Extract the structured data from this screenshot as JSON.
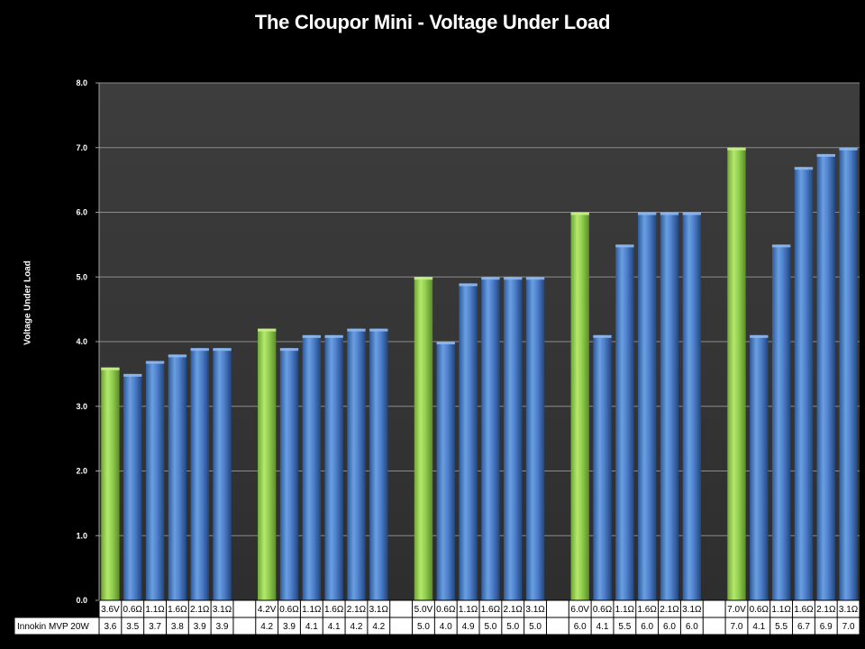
{
  "chart_data": {
    "type": "bar",
    "title": "The Cloupor Mini - Voltage Under Load",
    "ylabel": "Voltage Under Load",
    "xlabel": "",
    "ylim": [
      0,
      8
    ],
    "yticks": [
      "0.0",
      "1.0",
      "2.0",
      "3.0",
      "4.0",
      "5.0",
      "6.0",
      "7.0",
      "8.0"
    ],
    "grid": true,
    "categories": [
      "3.6V",
      "0.6Ω",
      "1.1Ω",
      "1.6Ω",
      "2.1Ω",
      "3.1Ω",
      "",
      "4.2V",
      "0.6Ω",
      "1.1Ω",
      "1.6Ω",
      "2.1Ω",
      "3.1Ω",
      "",
      "5.0V",
      "0.6Ω",
      "1.1Ω",
      "1.6Ω",
      "2.1Ω",
      "3.1Ω",
      "",
      "6.0V",
      "0.6Ω",
      "1.1Ω",
      "1.6Ω",
      "2.1Ω",
      "3.1Ω",
      "",
      "7.0V",
      "0.6Ω",
      "1.1Ω",
      "1.6Ω",
      "2.1Ω",
      "3.1Ω"
    ],
    "series": [
      {
        "name": "Innokin MVP 20W",
        "values": [
          3.6,
          3.5,
          3.7,
          3.8,
          3.9,
          3.9,
          null,
          4.2,
          3.9,
          4.1,
          4.1,
          4.2,
          4.2,
          null,
          5.0,
          4.0,
          4.9,
          5.0,
          5.0,
          5.0,
          null,
          6.0,
          4.1,
          5.5,
          6.0,
          6.0,
          6.0,
          null,
          7.0,
          4.1,
          5.5,
          6.7,
          6.9,
          7.0
        ],
        "labels": [
          "3.6",
          "3.5",
          "3.7",
          "3.8",
          "3.9",
          "3.9",
          "",
          "4.2",
          "3.9",
          "4.1",
          "4.1",
          "4.2",
          "4.2",
          "",
          "5.0",
          "4.0",
          "4.9",
          "5.0",
          "5.0",
          "5.0",
          "",
          "6.0",
          "4.1",
          "5.5",
          "6.0",
          "6.0",
          "6.0",
          "",
          "7.0",
          "4.1",
          "5.5",
          "6.7",
          "6.9",
          "7.0"
        ]
      }
    ],
    "colors": {
      "reference": "#92d050",
      "measured": "#4f81bd",
      "plot_background": "#3c3c3c",
      "gridline": "#8c8c8c"
    }
  }
}
